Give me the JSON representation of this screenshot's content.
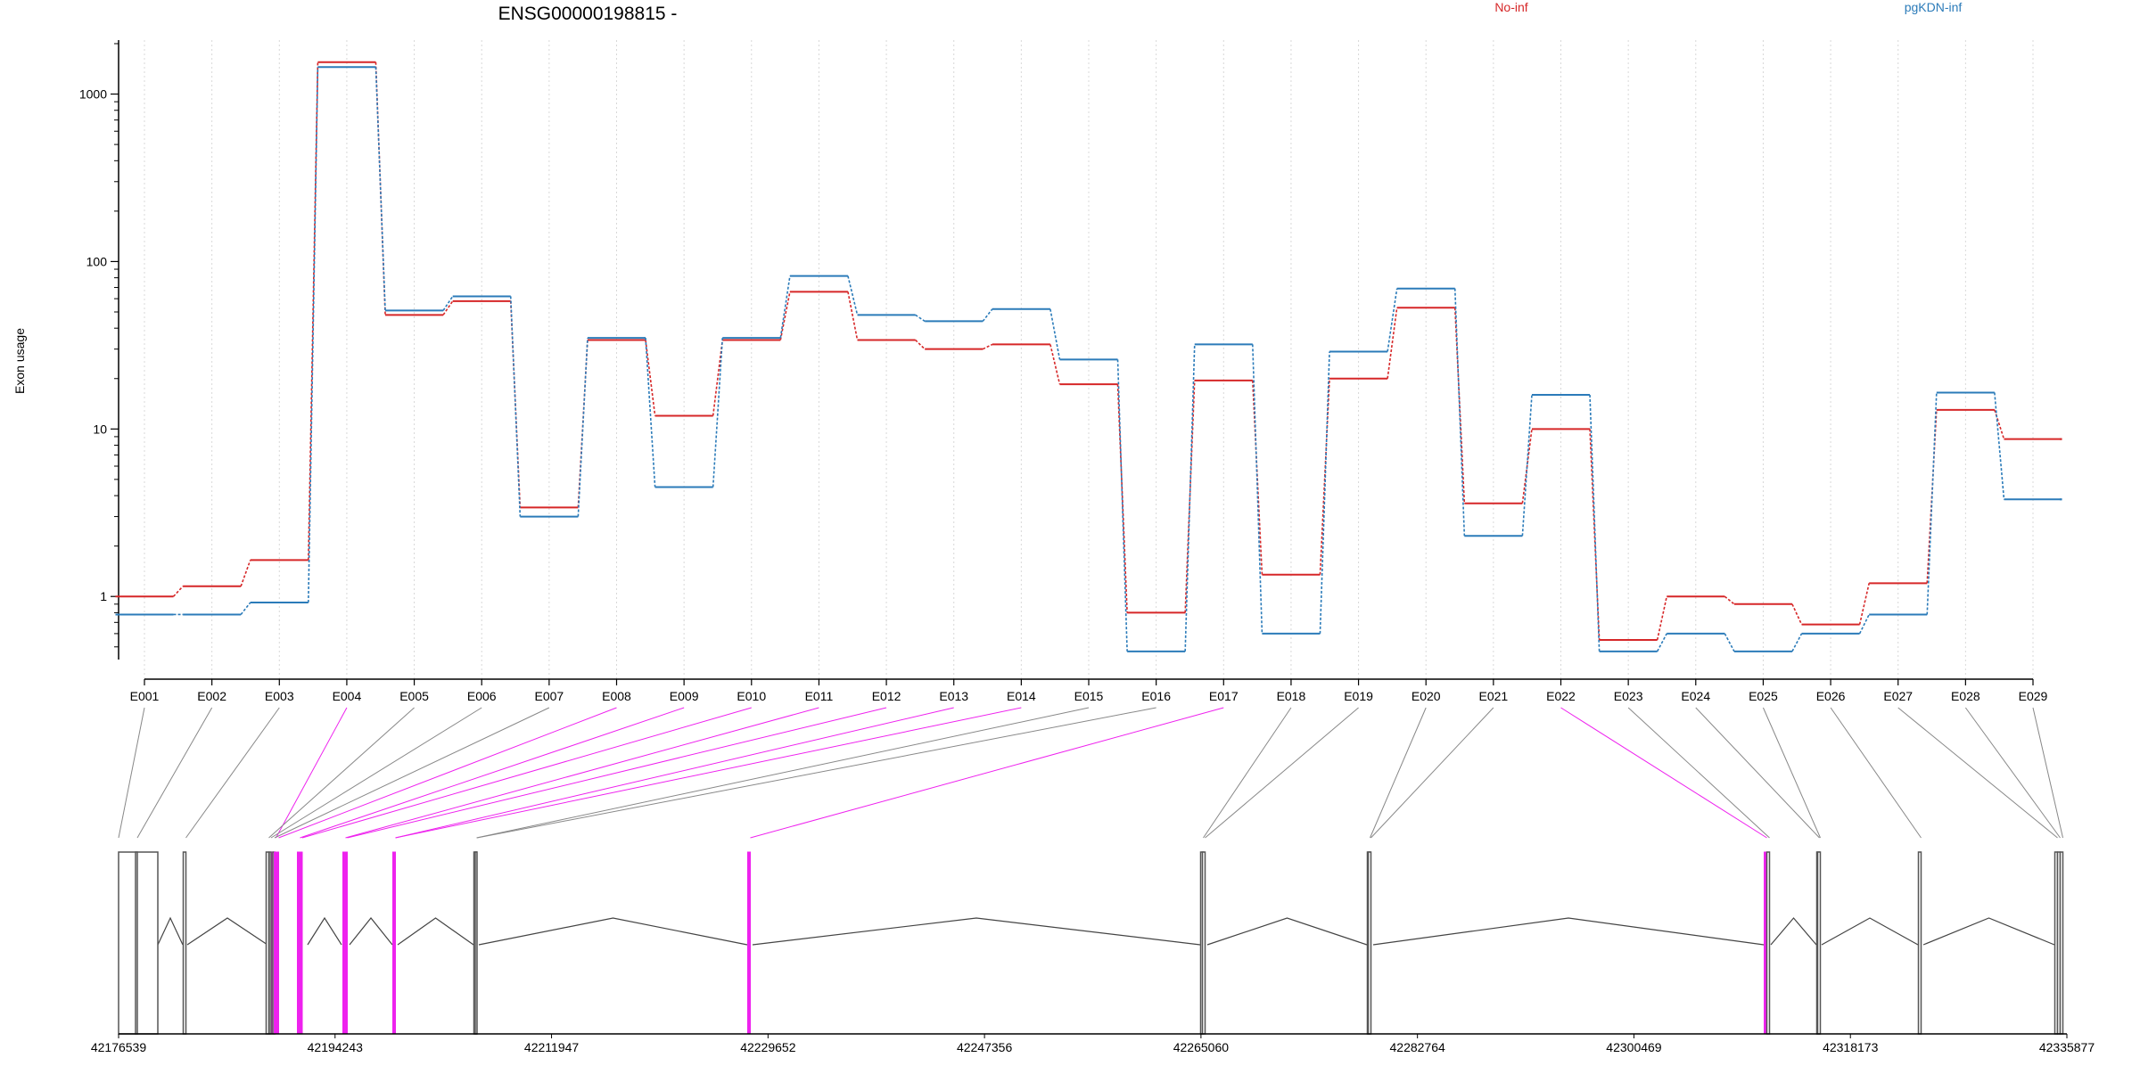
{
  "chart_data": {
    "type": "line",
    "title": "ENSG00000198815 -",
    "ylabel": "Exon usage",
    "yscale": "log",
    "ylim": [
      0.42,
      2100
    ],
    "yticks": [
      1,
      10,
      100,
      1000
    ],
    "ytick_labels": [
      "1",
      "10",
      "100",
      "1000"
    ],
    "grid": "vertical dotted lines at exon centres",
    "legend_placement": "top",
    "categories": [
      "E001",
      "E002",
      "E003",
      "E004",
      "E005",
      "E006",
      "E007",
      "E008",
      "E009",
      "E010",
      "E011",
      "E012",
      "E013",
      "E014",
      "E015",
      "E016",
      "E017",
      "E018",
      "E019",
      "E020",
      "E021",
      "E022",
      "E023",
      "E024",
      "E025",
      "E026",
      "E027",
      "E028",
      "E029"
    ],
    "series": [
      {
        "name": "No-inf",
        "color": "#d62728",
        "values": [
          1.0,
          1.15,
          1.65,
          1550,
          48,
          58,
          3.4,
          34,
          12,
          34,
          66,
          34,
          30,
          32,
          18.5,
          0.8,
          19.5,
          1.35,
          20,
          53,
          3.6,
          10,
          0.55,
          1.0,
          0.9,
          0.68,
          1.2,
          13,
          8.7
        ],
        "style": "solid"
      },
      {
        "name": "pgKDN-inf",
        "color": "#2b7bb9",
        "values": [
          0.78,
          0.78,
          0.92,
          1450,
          51,
          62,
          3.0,
          35,
          4.5,
          35,
          82,
          48,
          44,
          52,
          26,
          0.47,
          32,
          0.6,
          29,
          69,
          2.3,
          16,
          0.47,
          0.6,
          0.47,
          0.6,
          0.78,
          16.5,
          3.8
        ],
        "style": "dashed"
      }
    ],
    "gene_model": {
      "coordinate_ticks": [
        "42176539",
        "42194243",
        "42211947",
        "42229652",
        "42247356",
        "42265060",
        "42282764",
        "42300469",
        "42318173",
        "42335877"
      ],
      "highlight_color": "#ee22ee",
      "line_color": "#444444",
      "highlighted_exons": [
        "E004",
        "E008",
        "E009",
        "E010",
        "E011",
        "E012",
        "E013",
        "E014",
        "E017",
        "E022"
      ]
    }
  }
}
